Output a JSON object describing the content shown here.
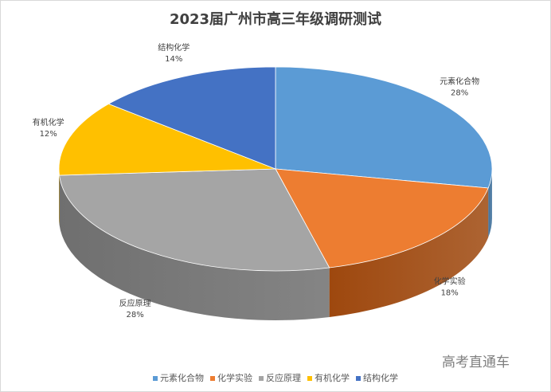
{
  "chart_data": {
    "type": "pie",
    "title": "2023届广州市高三年级调研测试",
    "slices": [
      {
        "name": "元素化合物",
        "value": 28,
        "label": "28%",
        "color": "#5b9bd5",
        "side": "#41719c"
      },
      {
        "name": "化学实验",
        "value": 18,
        "label": "18%",
        "color": "#ed7d31",
        "side": "#9e480e"
      },
      {
        "name": "反应原理",
        "value": 28,
        "label": "28%",
        "color": "#a5a5a5",
        "side": "#6f6f6f"
      },
      {
        "name": "有机化学",
        "value": 12,
        "label": "12%",
        "color": "#ffc000",
        "side": "#b38600"
      },
      {
        "name": "结构化学",
        "value": 14,
        "label": "14%",
        "color": "#4472c4",
        "side": "#2f528f"
      }
    ],
    "legend_position": "bottom"
  },
  "watermark": "高考直通车"
}
